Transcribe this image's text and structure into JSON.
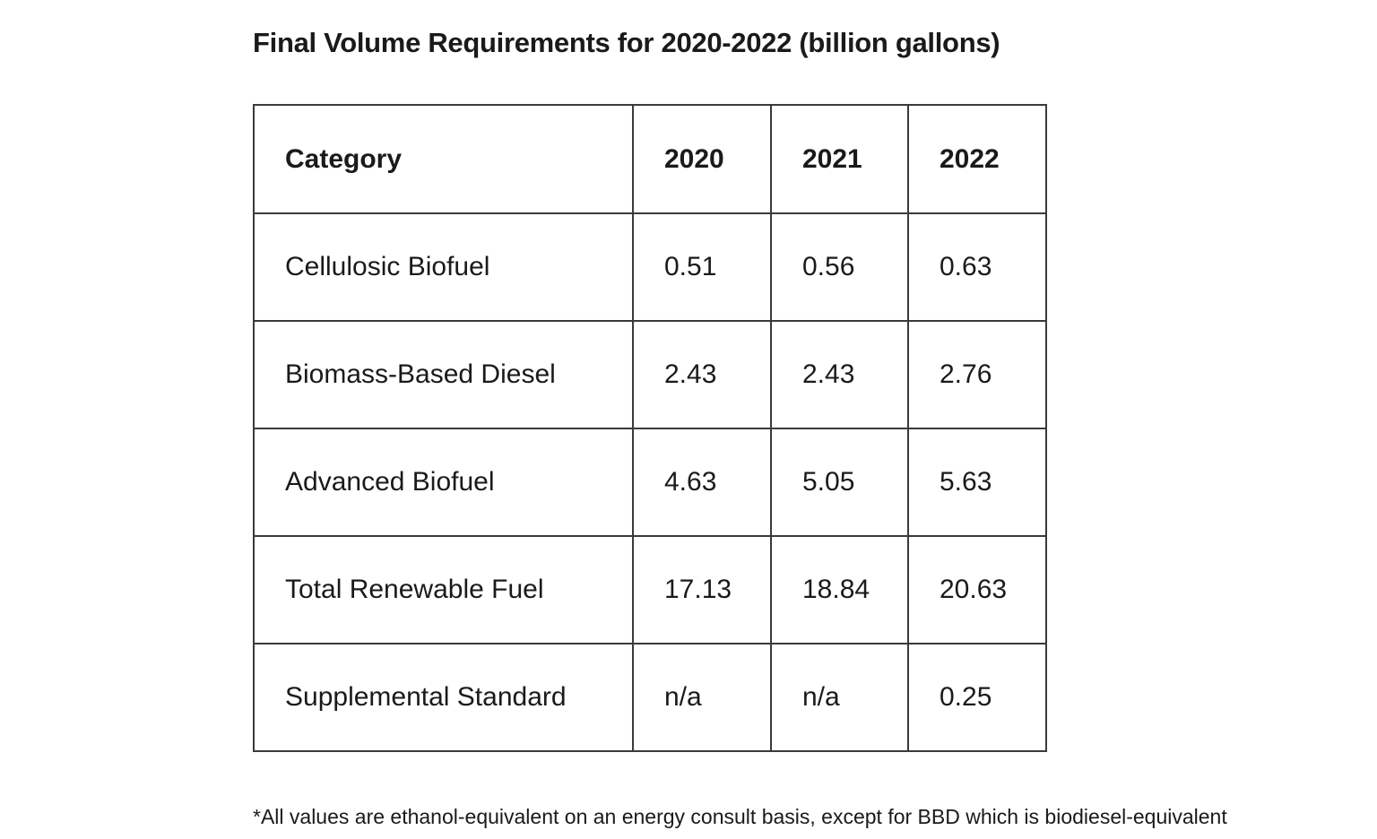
{
  "title": "Final Volume Requirements for 2020-2022 (billion gallons)",
  "table": {
    "headers": [
      "Category",
      "2020",
      "2021",
      "2022"
    ],
    "rows": [
      [
        "Cellulosic Biofuel",
        "0.51",
        "0.56",
        "0.63"
      ],
      [
        "Biomass-Based Diesel",
        "2.43",
        "2.43",
        "2.76"
      ],
      [
        "Advanced Biofuel",
        "4.63",
        "5.05",
        "5.63"
      ],
      [
        "Total Renewable Fuel",
        "17.13",
        "18.84",
        "20.63"
      ],
      [
        "Supplemental Standard",
        "n/a",
        "n/a",
        "0.25"
      ]
    ]
  },
  "footnote": "*All values are ethanol-equivalent on an energy consult basis, except for BBD which is biodiesel-equivalent"
}
